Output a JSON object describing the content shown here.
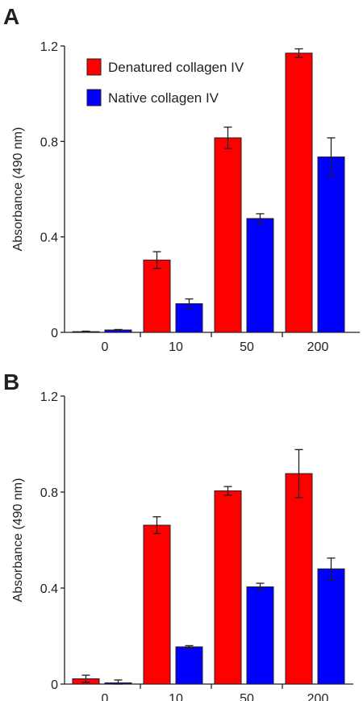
{
  "chart_data": [
    {
      "type": "bar",
      "panel_label": "A",
      "ylabel": "Absorbance (490 nm)",
      "ylim": [
        0,
        1.2
      ],
      "yticks": [
        "0",
        "0.4",
        "0.8",
        "1.2"
      ],
      "categories": [
        "0",
        "10",
        "50",
        "200"
      ],
      "legend_position": "top-left",
      "series": [
        {
          "name": "Denatured collagen IV",
          "color": "#ff0000",
          "values": [
            0.003,
            0.303,
            0.815,
            1.17
          ],
          "errors": [
            0.002,
            0.035,
            0.045,
            0.018
          ]
        },
        {
          "name": "Native collagen IV",
          "color": "#0000ff",
          "values": [
            0.01,
            0.12,
            0.477,
            0.735
          ],
          "errors": [
            0.002,
            0.02,
            0.02,
            0.08
          ]
        }
      ]
    },
    {
      "type": "bar",
      "panel_label": "B",
      "ylabel": "Absorbance (490 nm)",
      "ylim": [
        0,
        1.2
      ],
      "yticks": [
        "0",
        "0.4",
        "0.8",
        "1.2"
      ],
      "categories": [
        "0",
        "10",
        "50",
        "200"
      ],
      "series": [
        {
          "color": "#ff0000",
          "values": [
            0.022,
            0.662,
            0.805,
            0.877
          ],
          "errors": [
            0.015,
            0.035,
            0.018,
            0.1
          ]
        },
        {
          "color": "#0000ff",
          "values": [
            0.005,
            0.155,
            0.405,
            0.48
          ],
          "errors": [
            0.012,
            0.005,
            0.015,
            0.045
          ]
        }
      ]
    }
  ]
}
